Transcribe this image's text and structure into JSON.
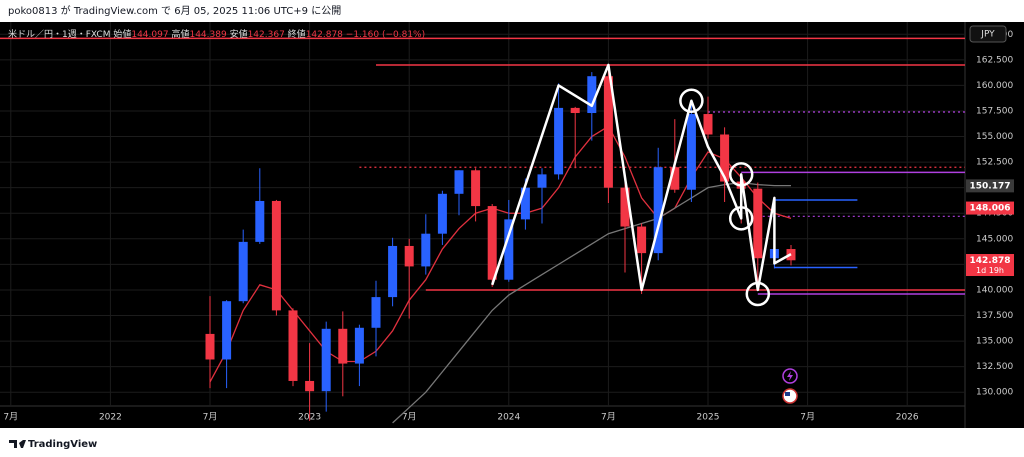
{
  "header": "poko0813 が TradingView.com で 6月 05, 2025 11:06 UTC+9 に公開",
  "footer": "TradingView",
  "chart_data": {
    "type": "candlestick",
    "symbol": "米ドル／円・1週・FXCM",
    "ohlc_legend": {
      "open_label": "始値",
      "open": 144.097,
      "high_label": "高値",
      "high": 144.389,
      "low_label": "安値",
      "low": 142.367,
      "close_label": "終値",
      "close": 142.878,
      "change": "−1.160 (−0.81%)"
    },
    "currency": "JPY",
    "x": [
      "2022-07",
      "2022-08",
      "2022-09",
      "2022-10",
      "2022-11",
      "2022-12",
      "2023-01",
      "2023-02",
      "2023-03",
      "2023-04",
      "2023-05",
      "2023-06",
      "2023-07",
      "2023-08",
      "2023-09",
      "2023-10",
      "2023-11",
      "2023-12",
      "2024-01",
      "2024-02",
      "2024-03",
      "2024-04",
      "2024-05",
      "2024-06",
      "2024-07",
      "2024-08",
      "2024-09",
      "2024-10",
      "2024-11",
      "2024-12",
      "2025-01",
      "2025-02",
      "2025-03",
      "2025-04",
      "2025-05",
      "2025-06"
    ],
    "open": [
      135.7,
      133.2,
      138.9,
      144.7,
      148.7,
      138.0,
      131.1,
      130.1,
      136.2,
      132.8,
      136.3,
      139.3,
      144.3,
      142.3,
      145.5,
      149.4,
      151.7,
      148.2,
      141.0,
      146.9,
      150.0,
      151.3,
      157.8,
      157.3,
      160.9,
      150.0,
      146.2,
      143.6,
      152.0,
      149.8,
      157.2,
      155.2,
      150.6,
      149.9,
      143.1,
      144.0
    ],
    "high": [
      139.4,
      139.0,
      145.9,
      151.9,
      148.8,
      138.2,
      134.8,
      136.9,
      137.9,
      136.6,
      140.9,
      145.1,
      145.0,
      147.4,
      149.7,
      151.7,
      151.9,
      148.4,
      148.8,
      150.9,
      151.9,
      160.2,
      157.9,
      161.3,
      162.0,
      150.9,
      146.5,
      153.9,
      156.7,
      158.1,
      158.9,
      155.9,
      151.3,
      150.5,
      148.7,
      144.4
    ],
    "low": [
      130.4,
      130.4,
      138.7,
      144.5,
      137.5,
      130.6,
      127.2,
      128.1,
      129.6,
      130.6,
      133.5,
      138.4,
      137.2,
      141.5,
      144.4,
      147.3,
      146.7,
      140.3,
      140.8,
      145.9,
      146.5,
      150.8,
      151.9,
      154.6,
      148.5,
      141.7,
      139.6,
      142.9,
      149.5,
      148.6,
      154.8,
      148.6,
      146.5,
      139.9,
      142.1,
      142.4
    ],
    "close": [
      133.2,
      138.9,
      144.7,
      148.7,
      138.0,
      131.1,
      130.1,
      136.2,
      132.8,
      136.3,
      139.3,
      144.3,
      142.3,
      145.5,
      149.4,
      151.7,
      148.2,
      141.0,
      146.9,
      150.0,
      151.3,
      157.8,
      157.3,
      160.9,
      150.0,
      146.2,
      143.6,
      152.0,
      149.8,
      157.2,
      155.2,
      150.6,
      149.9,
      143.1,
      144.0,
      142.9
    ],
    "up_color": "#2962ff",
    "down_color": "#f23645",
    "moving_averages": [
      {
        "color": "#e0303e",
        "values": [
          131,
          134,
          138,
          140.5,
          140,
          138,
          136,
          134,
          133,
          133,
          134,
          136,
          139,
          141,
          144,
          146,
          147.5,
          148,
          147.5,
          147.5,
          148,
          150,
          153,
          155,
          156,
          153,
          149,
          147,
          148,
          151,
          153.5,
          152.8,
          151,
          149,
          147.5,
          147
        ]
      },
      {
        "color": "#777777",
        "values": [
          null,
          null,
          null,
          null,
          null,
          null,
          null,
          null,
          null,
          null,
          null,
          127,
          128.5,
          130,
          132,
          134,
          136,
          138,
          139.5,
          140.5,
          141.5,
          142.5,
          143.5,
          144.5,
          145.5,
          146,
          146.5,
          147,
          148,
          149,
          150,
          150.3,
          150.5,
          150.3,
          150.2,
          150.2
        ]
      }
    ],
    "levels": [
      {
        "value": 164.6,
        "color": "#f23645",
        "dash": false,
        "start": "2021-06",
        "end": "2026-12"
      },
      {
        "value": 162,
        "color": "#f23645",
        "dash": false,
        "start": "2023-05",
        "end": "2026-12"
      },
      {
        "value": 152,
        "color": "#f23645",
        "dash": true,
        "start": "2023-04",
        "end": "2026-12"
      },
      {
        "value": 157.4,
        "color": "#b040e0",
        "dash": true,
        "start": "2025-01",
        "end": "2026-12"
      },
      {
        "value": 151.5,
        "color": "#b040e0",
        "dash": false,
        "start": "2025-03",
        "end": "2026-12"
      },
      {
        "value": 147.2,
        "color": "#b040e0",
        "dash": true,
        "start": "2025-04",
        "end": "2026-12"
      },
      {
        "value": 148.8,
        "color": "#2962ff",
        "dash": false,
        "start": "2025-05",
        "end": "2025-10"
      },
      {
        "value": 142.2,
        "color": "#2962ff",
        "dash": false,
        "start": "2025-05",
        "end": "2025-10"
      },
      {
        "value": 140,
        "color": "#f23645",
        "dash": false,
        "start": "2023-08",
        "end": "2026-12"
      },
      {
        "value": 139.6,
        "color": "#b040e0",
        "dash": false,
        "start": "2025-04",
        "end": "2026-12"
      }
    ],
    "zigzag": {
      "x": [
        "2023-12",
        "2024-04",
        "2024-06",
        "2024-07",
        "2024-09",
        "2024-12",
        "2025-01",
        "2025-02",
        "2025-03",
        "2025-03",
        "2025-04",
        "2025-05",
        "2025-05",
        "2025-06"
      ],
      "y": [
        140.5,
        160,
        158,
        162,
        140,
        158.5,
        154,
        151,
        147,
        151.3,
        140,
        149,
        142.6,
        143.5
      ]
    },
    "circles": {
      "x": [
        "2024-12",
        "2025-03",
        "2025-03",
        "2025-04"
      ],
      "y": [
        158.5,
        147,
        151.3,
        139.6
      ]
    },
    "price_labels": [
      {
        "value": 150.177,
        "color": "#3a3a3a"
      },
      {
        "value": 148.006,
        "color": "#f23645"
      },
      {
        "value": 142.878,
        "color": "#f23645",
        "countdown": "1d 19h"
      }
    ],
    "ylim": [
      126.5,
      166.2
    ],
    "yticks": [
      {
        "value": 130,
        "label": "130.000"
      },
      {
        "value": 132.5,
        "label": "132.500"
      },
      {
        "value": 135,
        "label": "135.000"
      },
      {
        "value": 137.5,
        "label": "137.500"
      },
      {
        "value": 140,
        "label": "140.000"
      },
      {
        "value": 142.5,
        "label": "142.500"
      },
      {
        "value": 145,
        "label": "145.000"
      },
      {
        "value": 147.5,
        "label": "147.500"
      },
      {
        "value": 150,
        "label": "150.000"
      },
      {
        "value": 152.5,
        "label": "152.500"
      },
      {
        "value": 155,
        "label": "155.000"
      },
      {
        "value": 157.5,
        "label": "157.500"
      },
      {
        "value": 160,
        "label": "160.000"
      },
      {
        "value": 162.5,
        "label": "162.500"
      },
      {
        "value": 165,
        "label": "165.000"
      }
    ],
    "xticks": [
      {
        "value": "2021-07",
        "label": "7月"
      },
      {
        "value": "2022-01",
        "label": "2022"
      },
      {
        "value": "2022-07",
        "label": "7月"
      },
      {
        "value": "2023-01",
        "label": "2023"
      },
      {
        "value": "2023-07",
        "label": "7月"
      },
      {
        "value": "2024-01",
        "label": "2024"
      },
      {
        "value": "2024-07",
        "label": "7月"
      },
      {
        "value": "2025-01",
        "label": "2025"
      },
      {
        "value": "2025-07",
        "label": "7月"
      },
      {
        "value": "2026-01",
        "label": "2026"
      }
    ],
    "grid": true
  }
}
